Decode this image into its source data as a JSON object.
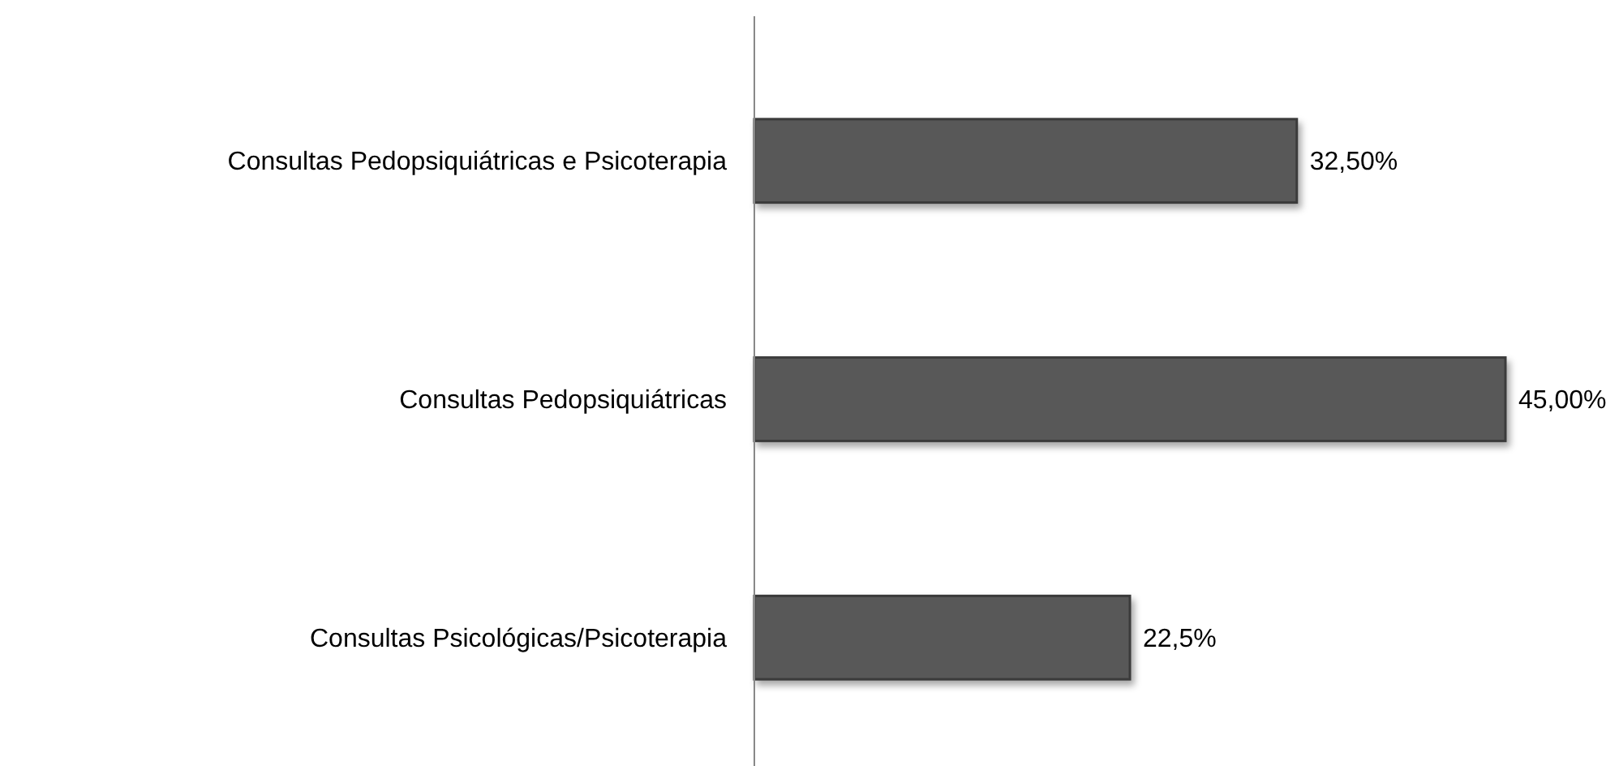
{
  "chart_data": {
    "type": "bar",
    "orientation": "horizontal",
    "categories": [
      "Consultas Pedopsiquiátricas e Psicoterapia",
      "Consultas Pedopsiquiátricas",
      "Consultas Psicológicas/Psicoterapia"
    ],
    "values": [
      32.5,
      45,
      22.5
    ],
    "value_labels": [
      "32,50%",
      "45,00%",
      "22,5%"
    ],
    "color": "#595959"
  }
}
